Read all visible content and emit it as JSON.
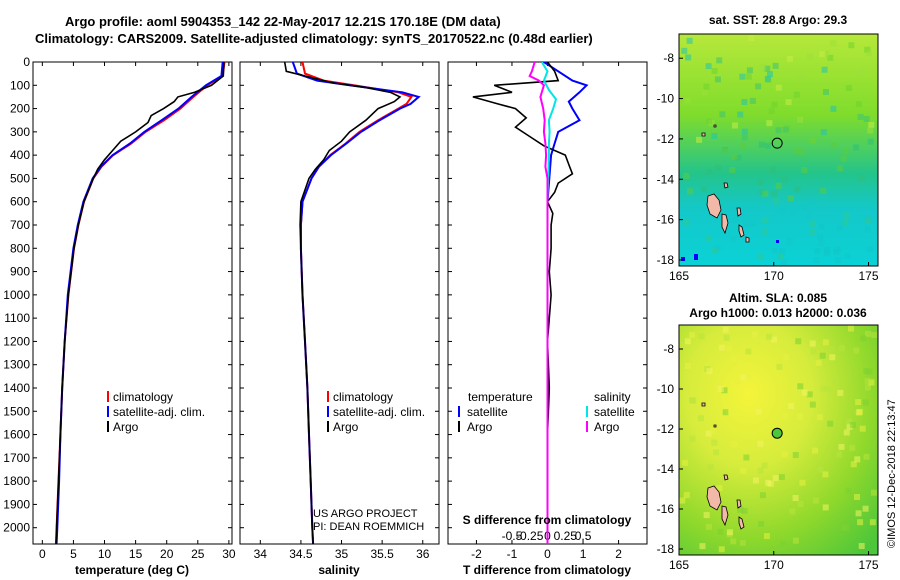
{
  "title": {
    "line1": "Argo profile: aoml 5904353_142 22-May-2017 12.21S 170.18E (DM data)",
    "line2": "Climatology: CARS2009. Satellite-adjusted climatology: synTS_20170522.nc (0.48d earlier)"
  },
  "credit": {
    "line1": "US ARGO PROJECT",
    "line2": "PI: DEAN ROEMMICH"
  },
  "imos_stamp": "©IMOS 12-Dec-2018 22:13:47",
  "colors": {
    "climatology": "#ff0000",
    "satellite": "#0000ff",
    "argo": "#000000",
    "satellite_s": "#00e5e5",
    "argo_s": "#ff00ff"
  },
  "chart_data": [
    {
      "type": "line",
      "name": "temperature-profile",
      "xlabel": "temperature (deg C)",
      "ylabel": "",
      "xlim": [
        -1.5,
        30.5
      ],
      "ylim": [
        2070,
        0
      ],
      "xticks": [
        0,
        5,
        10,
        15,
        20,
        25,
        30
      ],
      "yticks": [
        0,
        100,
        200,
        300,
        400,
        500,
        600,
        700,
        800,
        900,
        1000,
        1100,
        1200,
        1300,
        1400,
        1500,
        1600,
        1700,
        1800,
        1900,
        2000
      ],
      "legend": [
        "climatology",
        "satellite-adj. clim.",
        "Argo"
      ],
      "series": [
        {
          "name": "climatology",
          "color": "#ff0000",
          "depth": [
            0,
            60,
            100,
            150,
            200,
            250,
            300,
            350,
            400,
            450,
            500,
            600,
            700,
            800,
            1000,
            1200,
            1400,
            1600,
            1800,
            2000,
            2070
          ],
          "values": [
            29.3,
            29.0,
            26.5,
            24.3,
            22.2,
            19.6,
            16.6,
            14.3,
            11.4,
            9.5,
            8.2,
            6.7,
            5.8,
            5.1,
            4.2,
            3.6,
            3.2,
            2.9,
            2.6,
            2.3,
            2.2
          ]
        },
        {
          "name": "satellite-adj. clim.",
          "color": "#0000ff",
          "depth": [
            0,
            60,
            100,
            150,
            200,
            250,
            300,
            350,
            400,
            450,
            500,
            600,
            700,
            800,
            1000,
            1200,
            1400,
            1600,
            1800,
            2000,
            2070
          ],
          "values": [
            29.0,
            28.8,
            26.3,
            24.0,
            21.9,
            19.2,
            16.4,
            14.1,
            11.3,
            9.4,
            8.1,
            6.6,
            5.7,
            5.0,
            4.1,
            3.6,
            3.2,
            2.9,
            2.7,
            2.4,
            2.3
          ]
        },
        {
          "name": "Argo",
          "color": "#000000",
          "depth": [
            0,
            60,
            100,
            130,
            150,
            170,
            200,
            230,
            260,
            300,
            340,
            380,
            420,
            460,
            500,
            600,
            700,
            800,
            1000,
            1200,
            1400,
            1600,
            1800,
            2000,
            2070
          ],
          "values": [
            29.2,
            29.1,
            27.2,
            24.5,
            21.8,
            21.2,
            19.5,
            17.5,
            17.0,
            15.0,
            12.6,
            11.3,
            10.0,
            8.9,
            8.2,
            6.7,
            5.8,
            5.1,
            4.2,
            3.6,
            3.2,
            2.9,
            2.6,
            2.3,
            2.2
          ]
        }
      ]
    },
    {
      "type": "line",
      "name": "salinity-profile",
      "xlabel": "salinity",
      "xlim": [
        33.75,
        36.2
      ],
      "ylim": [
        2070,
        0
      ],
      "xticks": [
        34,
        34.5,
        35,
        35.5,
        36
      ],
      "legend": [
        "climatology",
        "satellite-adj. clim.",
        "Argo"
      ],
      "series": [
        {
          "name": "climatology",
          "color": "#ff0000",
          "depth": [
            0,
            50,
            80,
            100,
            130,
            150,
            180,
            200,
            250,
            300,
            350,
            400,
            450,
            500,
            600,
            700,
            800,
            1000,
            1200,
            1400,
            1600,
            1800,
            2000,
            2070
          ],
          "values": [
            34.52,
            34.55,
            34.78,
            35.15,
            35.7,
            35.86,
            35.8,
            35.7,
            35.45,
            35.22,
            35.05,
            34.86,
            34.72,
            34.63,
            34.52,
            34.5,
            34.5,
            34.52,
            34.55,
            34.58,
            34.6,
            34.62,
            34.64,
            34.65
          ]
        },
        {
          "name": "satellite-adj. clim.",
          "color": "#0000ff",
          "depth": [
            0,
            50,
            80,
            100,
            130,
            150,
            180,
            200,
            250,
            300,
            350,
            400,
            450,
            500,
            600,
            700,
            800,
            1000,
            1200,
            1400,
            1600,
            1800,
            2000,
            2070
          ],
          "values": [
            34.4,
            34.45,
            34.7,
            35.1,
            35.75,
            35.95,
            35.85,
            35.72,
            35.47,
            35.24,
            35.06,
            34.87,
            34.72,
            34.63,
            34.52,
            34.5,
            34.5,
            34.52,
            34.55,
            34.58,
            34.6,
            34.62,
            34.64,
            34.65
          ]
        },
        {
          "name": "Argo",
          "color": "#000000",
          "depth": [
            0,
            40,
            60,
            90,
            110,
            130,
            150,
            170,
            200,
            250,
            300,
            340,
            380,
            420,
            460,
            500,
            600,
            700,
            800,
            1000,
            1200,
            1400,
            1600,
            1800,
            2000,
            2070
          ],
          "values": [
            34.3,
            34.32,
            34.55,
            34.9,
            35.3,
            35.6,
            35.72,
            35.65,
            35.45,
            35.3,
            35.1,
            35.0,
            34.85,
            34.78,
            34.68,
            34.6,
            34.5,
            34.49,
            34.5,
            34.52,
            34.55,
            34.58,
            34.6,
            34.62,
            34.64,
            34.65
          ]
        }
      ]
    },
    {
      "type": "line",
      "name": "difference-profile",
      "xlabel": "T difference from climatology",
      "xlabel_top": "S difference from climatology",
      "xlim": [
        -2.8,
        2.8
      ],
      "ylim": [
        2070,
        0
      ],
      "xticks": [
        -2,
        -1,
        0,
        1,
        2
      ],
      "xticks_s": [
        -0.5,
        -0.25,
        0,
        0.25,
        0.5
      ],
      "xtick_s_labels": [
        "-0.5",
        "-0.25",
        "0",
        "0.25",
        "0.5"
      ],
      "legend_t_title": "temperature",
      "legend_s_title": "salinity",
      "legend_t": [
        "satellite",
        "Argo"
      ],
      "legend_s": [
        "satellite",
        "Argo"
      ],
      "series": [
        {
          "name": "T satellite",
          "color": "#0000ff",
          "depth": [
            0,
            40,
            80,
            100,
            130,
            170,
            200,
            250,
            300,
            350,
            400,
            500,
            600,
            700,
            800,
            1000,
            1400,
            2000,
            2070
          ],
          "values": [
            -0.1,
            0.3,
            0.7,
            1.1,
            0.9,
            0.6,
            0.7,
            0.9,
            0.3,
            0.2,
            0.1,
            0.05,
            0.0,
            0.0,
            0.0,
            0.0,
            0.0,
            0.0,
            0.0
          ]
        },
        {
          "name": "T Argo",
          "color": "#000000",
          "depth": [
            0,
            40,
            80,
            100,
            130,
            150,
            180,
            200,
            240,
            280,
            320,
            360,
            400,
            440,
            480,
            520,
            560,
            600,
            650,
            700,
            800,
            900,
            1000,
            1200,
            1400,
            1600,
            1800,
            2000,
            2070
          ],
          "values": [
            0.0,
            0.2,
            0.3,
            -1.5,
            -1.0,
            -2.1,
            -1.4,
            -0.9,
            -0.6,
            -0.9,
            -0.5,
            -0.1,
            0.5,
            0.6,
            0.7,
            0.3,
            0.2,
            0.0,
            0.15,
            0.1,
            0.1,
            0.05,
            0.1,
            0.0,
            0.05,
            0.0,
            0.0,
            0.0,
            0.0
          ]
        },
        {
          "name": "S satellite",
          "color": "#00e5e5",
          "depth": [
            0,
            40,
            80,
            120,
            160,
            200,
            250,
            300,
            350,
            400,
            500,
            600,
            800,
            1000,
            1500,
            2000,
            2070
          ],
          "values": [
            -0.08,
            0.0,
            -0.05,
            0.02,
            0.12,
            0.08,
            0.02,
            0.03,
            0.02,
            0.02,
            0.01,
            0.0,
            0.0,
            0.0,
            0.0,
            0.0,
            0.0
          ]
        },
        {
          "name": "S Argo",
          "color": "#ff00ff",
          "depth": [
            0,
            40,
            60,
            80,
            100,
            150,
            200,
            250,
            300,
            350,
            400,
            450,
            500,
            600,
            800,
            1000,
            1500,
            2000,
            2070
          ],
          "values": [
            -0.18,
            -0.22,
            -0.25,
            -0.12,
            -0.05,
            -0.1,
            -0.06,
            -0.04,
            -0.05,
            -0.03,
            -0.02,
            -0.03,
            0.0,
            0.0,
            0.0,
            0.0,
            0.0,
            0.0,
            0.0
          ]
        }
      ]
    },
    {
      "type": "heatmap",
      "name": "sst-map",
      "title": "sat. SST: 28.8 Argo: 29.3",
      "xlim": [
        165,
        175.5
      ],
      "ylim": [
        -18.3,
        -6.8
      ],
      "xticks": [
        165,
        170,
        175
      ],
      "yticks": [
        -8,
        -10,
        -12,
        -14,
        -16,
        -18
      ],
      "argo_position": {
        "lon": 170.18,
        "lat": -12.21
      }
    },
    {
      "type": "heatmap",
      "name": "sla-map",
      "title_line1": "Altim. SLA: 0.085",
      "title_line2": "Argo h1000: 0.013 h2000: 0.036",
      "xlim": [
        165,
        175.5
      ],
      "ylim": [
        -18.3,
        -6.8
      ],
      "xticks": [
        165,
        170,
        175
      ],
      "yticks": [
        -8,
        -10,
        -12,
        -14,
        -16,
        -18
      ],
      "argo_position": {
        "lon": 170.18,
        "lat": -12.21
      }
    }
  ]
}
